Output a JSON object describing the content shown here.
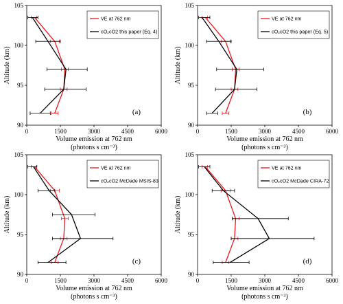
{
  "chart_data": [
    {
      "type": "line",
      "panel_label": "(a)",
      "xlabel": "Volume emission at 762 nm",
      "xunit": "(photons s cm⁻³)",
      "ylabel": "Altitude (km)",
      "xlim": [
        0,
        6000
      ],
      "ylim": [
        90,
        105
      ],
      "xticks": [
        "0",
        "1500",
        "3000",
        "4500",
        "6000"
      ],
      "yticks": [
        "90",
        "95",
        "100",
        "105"
      ],
      "legend_position": "top-right",
      "series": [
        {
          "name": "VE at 762 nm",
          "color": "#e8141c",
          "points": [
            [
              350,
              103.5
            ],
            [
              1250,
              100.5
            ],
            [
              1700,
              97.0
            ],
            [
              1650,
              94.5
            ],
            [
              1250,
              91.5
            ]
          ],
          "err_low": [
            200,
            1050,
            1550,
            1500,
            1100
          ],
          "err_high": [
            450,
            1450,
            1850,
            1800,
            1400
          ]
        },
        {
          "name": "cO₂cO2 this paper (Eq. 4)",
          "color": "#000000",
          "points": [
            [
              250,
              103.5
            ],
            [
              950,
              100.5
            ],
            [
              1750,
              97.0
            ],
            [
              1650,
              94.5
            ],
            [
              600,
              91.5
            ]
          ],
          "err_low": [
            50,
            400,
            900,
            800,
            150
          ],
          "err_high": [
            500,
            1500,
            2700,
            2650,
            1050
          ]
        }
      ]
    },
    {
      "type": "line",
      "panel_label": "(b)",
      "xlabel": "Volume emission at 762 nm",
      "xunit": "(photons s cm⁻³)",
      "ylabel": "Altitude (km)",
      "xlim": [
        0,
        6000
      ],
      "ylim": [
        90,
        105
      ],
      "xticks": [
        "0",
        "1500",
        "3000",
        "4500",
        "6000"
      ],
      "yticks": [
        "90",
        "95",
        "100",
        "105"
      ],
      "legend_position": "top-right",
      "series": [
        {
          "name": "VE at 762 nm",
          "color": "#e8141c",
          "points": [
            [
              350,
              103.5
            ],
            [
              1250,
              100.5
            ],
            [
              1700,
              97.0
            ],
            [
              1650,
              94.5
            ],
            [
              1250,
              91.5
            ]
          ],
          "err_low": [
            200,
            1050,
            1550,
            1500,
            1100
          ],
          "err_high": [
            450,
            1450,
            1850,
            1800,
            1400
          ]
        },
        {
          "name": "cO₂cO2 this paper (Eq. 5)",
          "color": "#000000",
          "points": [
            [
              200,
              103.5
            ],
            [
              950,
              100.5
            ],
            [
              1750,
              97.0
            ],
            [
              1650,
              94.5
            ],
            [
              650,
              91.5
            ]
          ],
          "err_low": [
            50,
            400,
            850,
            800,
            400
          ],
          "err_high": [
            550,
            1500,
            2950,
            2650,
            900
          ]
        }
      ]
    },
    {
      "type": "line",
      "panel_label": "(c)",
      "xlabel": "Volume emission at 762 nm",
      "xunit": "(photons s cm⁻³)",
      "ylabel": "Altitude (km)",
      "xlim": [
        0,
        6000
      ],
      "ylim": [
        90,
        105
      ],
      "xticks": [
        "0",
        "1500",
        "3000",
        "4500",
        "6000"
      ],
      "yticks": [
        "90",
        "95",
        "100",
        "105"
      ],
      "legend_position": "top-right",
      "series": [
        {
          "name": "VE at 762 nm",
          "color": "#e8141c",
          "points": [
            [
              350,
              103.5
            ],
            [
              1250,
              100.5
            ],
            [
              1700,
              97.0
            ],
            [
              1650,
              94.5
            ],
            [
              1250,
              91.5
            ]
          ],
          "err_low": [
            200,
            1050,
            1550,
            1500,
            1100
          ],
          "err_high": [
            450,
            1450,
            1850,
            1800,
            1400
          ]
        },
        {
          "name": "cO₂cO2 McDade MSIS-83",
          "color": "#000000",
          "points": [
            [
              300,
              103.5
            ],
            [
              1000,
              100.5
            ],
            [
              2000,
              97.5
            ],
            [
              2400,
              94.5
            ],
            [
              950,
              91.5
            ]
          ],
          "err_low": [
            50,
            500,
            1150,
            1150,
            500
          ],
          "err_high": [
            450,
            1250,
            3050,
            3850,
            1750
          ]
        }
      ]
    },
    {
      "type": "line",
      "panel_label": "(d)",
      "xlabel": "Volume emission at 762 nm",
      "xunit": "(photons s cm⁻³)",
      "ylabel": "Altitude (km)",
      "xlim": [
        0,
        6000
      ],
      "ylim": [
        90,
        105
      ],
      "xticks": [
        "0",
        "1500",
        "3000",
        "4500",
        "6000"
      ],
      "yticks": [
        "90",
        "95",
        "100",
        "105"
      ],
      "legend_position": "top-right",
      "series": [
        {
          "name": "VE at 762 nm",
          "color": "#e8141c",
          "points": [
            [
              350,
              103.5
            ],
            [
              1250,
              100.5
            ],
            [
              1700,
              97.0
            ],
            [
              1650,
              94.5
            ],
            [
              1250,
              91.5
            ]
          ],
          "err_low": [
            200,
            1050,
            1550,
            1500,
            1100
          ],
          "err_high": [
            450,
            1450,
            1850,
            1800,
            1400
          ]
        },
        {
          "name": "cO₂cO2 McDade CIRA-72",
          "color": "#000000",
          "points": [
            [
              300,
              103.5
            ],
            [
              1150,
              100.5
            ],
            [
              2700,
              97.0
            ],
            [
              3200,
              94.5
            ],
            [
              1450,
              91.5
            ]
          ],
          "err_low": [
            50,
            650,
            1550,
            1500,
            700
          ],
          "err_high": [
            550,
            1650,
            4050,
            5200,
            2300
          ]
        }
      ]
    }
  ]
}
